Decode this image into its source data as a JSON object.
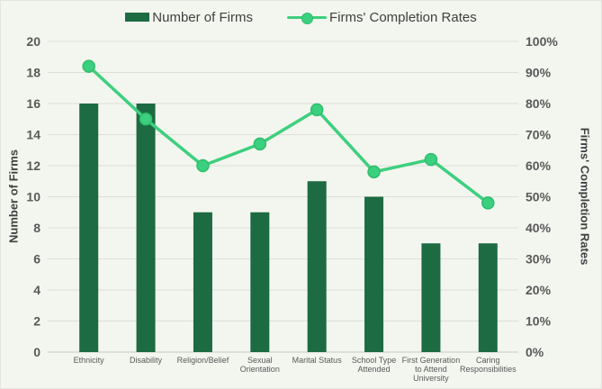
{
  "page": {
    "background": "#f3f6ef"
  },
  "legend": {
    "position": "top",
    "items": [
      {
        "label": "Number of Firms",
        "swatch": "bar-swatch",
        "color": "#1c6b42"
      },
      {
        "label": "Firms' Completion Rates",
        "swatch": "line-swatch",
        "color": "#3ecf7e"
      }
    ]
  },
  "chart_data": {
    "type": "combo",
    "categories": [
      "Ethnicity",
      "Disability",
      "Religion/Belief",
      "Sexual Orientation",
      "Marital Status",
      "School Type Attended",
      "First Generation to Attend University",
      "Caring Responsibilities"
    ],
    "category_label_lines": [
      [
        "Ethnicity"
      ],
      [
        "Disability"
      ],
      [
        "Religion/Belief"
      ],
      [
        "Sexual",
        "Orientation"
      ],
      [
        "Marital Status"
      ],
      [
        "School Type",
        "Attended"
      ],
      [
        "First Generation",
        "to Attend",
        "University"
      ],
      [
        "Caring",
        "Responsibilities"
      ]
    ],
    "series": [
      {
        "name": "Number of Firms",
        "type": "bar",
        "axis": "left",
        "color": "#1c6b42",
        "values": [
          16,
          16,
          9,
          9,
          11,
          10,
          7,
          7
        ]
      },
      {
        "name": "Firms' Completion Rates",
        "type": "line",
        "axis": "right",
        "color": "#3ecf7e",
        "values": [
          92,
          75,
          60,
          67,
          78,
          58,
          62,
          48
        ]
      }
    ],
    "axes": {
      "left": {
        "label": "Number of Firms",
        "min": 0,
        "max": 20,
        "step": 2,
        "tick_format": "number"
      },
      "right": {
        "label": "Firms' Completion Rates",
        "min": 0,
        "max": 100,
        "step": 10,
        "tick_format": "percent"
      }
    },
    "grid": "horizontal",
    "legend_position": "top"
  },
  "style": {
    "grid_color": "#dddfd7",
    "axis_line_color": "#c7c9c1",
    "tick_color": "#595959",
    "title_color": "#404040",
    "marker_fill": "#3bd07f",
    "marker_stroke": "#2ebd6b"
  }
}
